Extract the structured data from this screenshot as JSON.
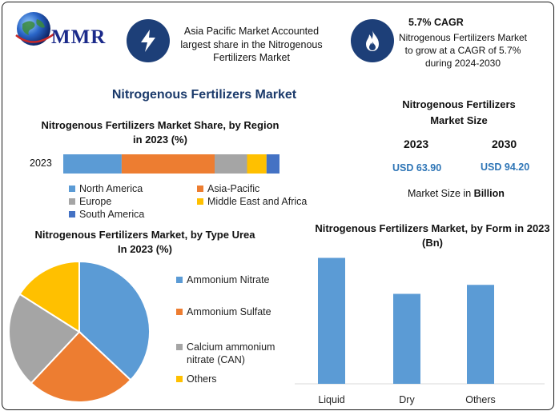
{
  "logo": {
    "text": "MMR"
  },
  "header": {
    "box1": "Asia Pacific Market Accounted largest share in the Nitrogenous Fertilizers Market",
    "box2_title": "5.7% CAGR",
    "box2_text": "Nitrogenous Fertilizers Market to grow at a CAGR of 5.7% during 2024-2030",
    "icon1": "lightning-bolt-icon",
    "icon2": "flame-icon"
  },
  "main_title": "Nitrogenous Fertilizers Market",
  "market_size": {
    "title": "Nitrogenous Fertilizers Market Size",
    "years": [
      "2023",
      "2030"
    ],
    "values": [
      "USD 63.90",
      "USD 94.20"
    ],
    "unit_label": "Market Size in ",
    "unit_bold": "Billion"
  },
  "colors": {
    "blue": "#5b9bd5",
    "orange": "#ed7d31",
    "gray": "#a5a5a5",
    "yellow": "#ffc000",
    "dark_blue": "#4472c4",
    "title_navy": "#1b3a6b",
    "usd_blue": "#2e75b6"
  },
  "chart_data": [
    {
      "type": "bar",
      "orientation": "horizontal-stacked",
      "title": "Nitrogenous Fertilizers Market Share, by Region in 2023 (%)",
      "categories": [
        "2023"
      ],
      "series": [
        {
          "name": "North America",
          "values": [
            27
          ]
        },
        {
          "name": "Asia-Pacific",
          "values": [
            43
          ]
        },
        {
          "name": "Europe",
          "values": [
            15
          ]
        },
        {
          "name": "Middle East and Africa",
          "values": [
            9
          ]
        },
        {
          "name": "South America",
          "values": [
            6
          ]
        }
      ],
      "xlim": [
        0,
        100
      ],
      "legend": "bottom"
    },
    {
      "type": "pie",
      "title": "Nitrogenous Fertilizers Market, by Type Urea In 2023 (%)",
      "labels": [
        "Ammonium Nitrate",
        "Ammonium Sulfate",
        "Calcium ammonium nitrate (CAN)",
        "Others"
      ],
      "values": [
        37,
        25,
        22,
        16
      ],
      "legend": "right"
    },
    {
      "type": "bar",
      "title": "Nitrogenous Fertilizers Market, by Form in 2023 (Bn)",
      "categories": [
        "Liquid",
        "Dry",
        "Others"
      ],
      "values": [
        28,
        20,
        22
      ],
      "ylim": [
        0,
        32
      ],
      "legend": "none",
      "grid": false
    }
  ]
}
